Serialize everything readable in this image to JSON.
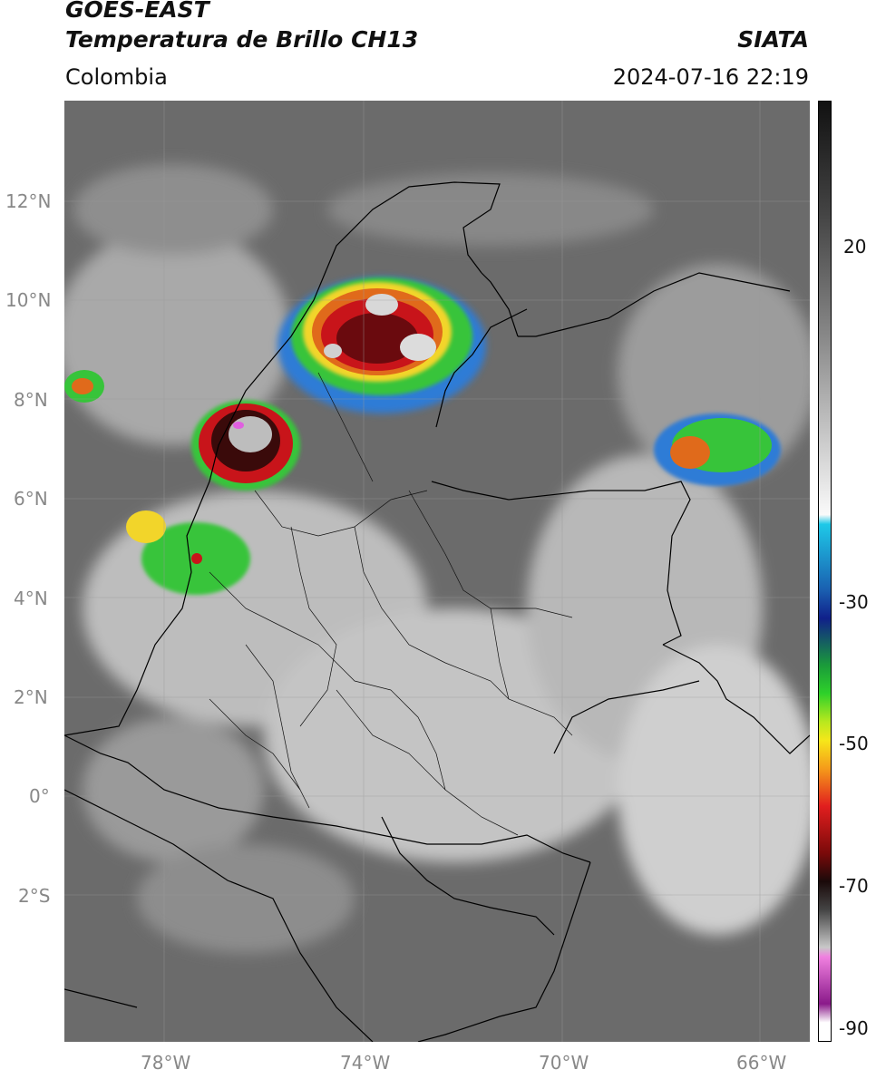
{
  "header": {
    "satellite": "GOES-EAST",
    "product": "Temperatura de Brillo CH13",
    "org": "SIATA",
    "region": "Colombia",
    "datetime": "2024-07-16 22:19"
  },
  "map": {
    "lat_ticks": [
      "12°N",
      "10°N",
      "8°N",
      "6°N",
      "4°N",
      "2°N",
      "0°",
      "2°S"
    ],
    "lon_ticks": [
      "78°W",
      "74°W",
      "70°W",
      "66°W"
    ],
    "gridlines": true
  },
  "colorbar": {
    "ticks": [
      "20",
      "-30",
      "-50",
      "-70",
      "-90"
    ]
  }
}
